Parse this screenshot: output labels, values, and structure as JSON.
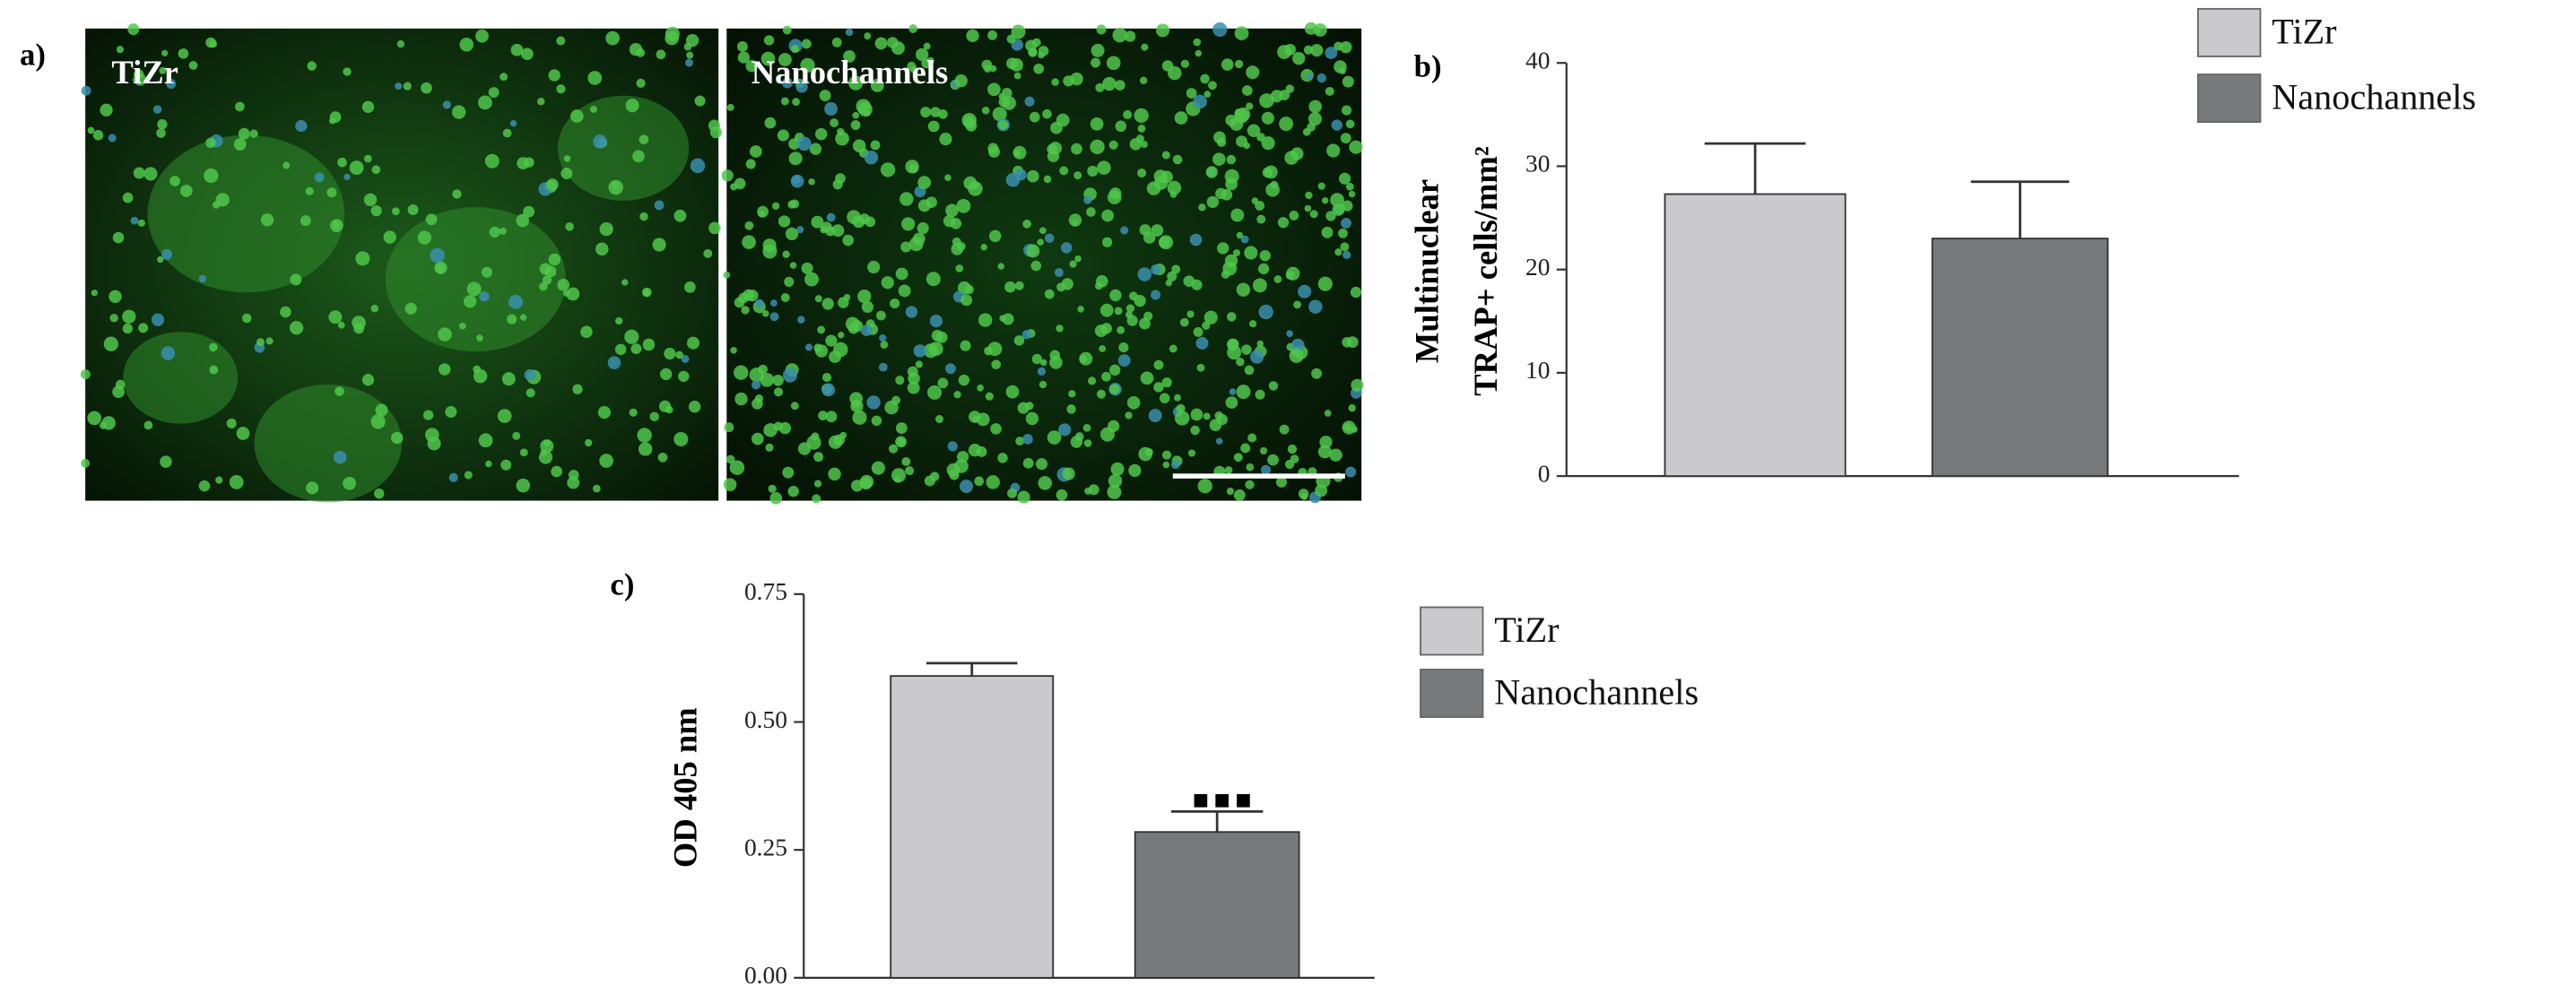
{
  "figure_a": {
    "panel_label": "a)",
    "images": [
      {
        "label": "TiZr"
      },
      {
        "label": "Nanochannels"
      }
    ]
  },
  "chart_data": [
    {
      "type": "bar",
      "panel_label": "b)",
      "y_label": [
        "Multinuclear",
        "TRAP+ cells/mm²"
      ],
      "series": [
        {
          "name": "TiZr",
          "color": "#c9c9ce",
          "values": [
            27.3
          ],
          "errors": [
            4.9
          ]
        },
        {
          "name": "Nanochannels",
          "color": "#78797b",
          "values": [
            23.0
          ],
          "errors": [
            5.5
          ]
        }
      ],
      "ylim": [
        0,
        40
      ],
      "yticks": [
        0,
        10,
        20,
        30,
        40
      ]
    },
    {
      "type": "bar",
      "panel_label": "c)",
      "y_label": [
        "OD 405 nm"
      ],
      "series": [
        {
          "name": "TiZr",
          "color": "#c9c9ce",
          "values": [
            0.59
          ],
          "errors": [
            0.025
          ]
        },
        {
          "name": "Nanochannels",
          "color": "#78797b",
          "values": [
            0.285
          ],
          "errors": [
            0.04
          ]
        }
      ],
      "ylim": [
        0,
        0.75
      ],
      "yticks": [
        {
          "value": 0,
          "label": "0.00"
        },
        {
          "value": 0.25,
          "label": "0.25"
        },
        {
          "value": 0.5,
          "label": "0.50"
        },
        {
          "value": 0.75,
          "label": "0.75"
        }
      ]
    }
  ]
}
